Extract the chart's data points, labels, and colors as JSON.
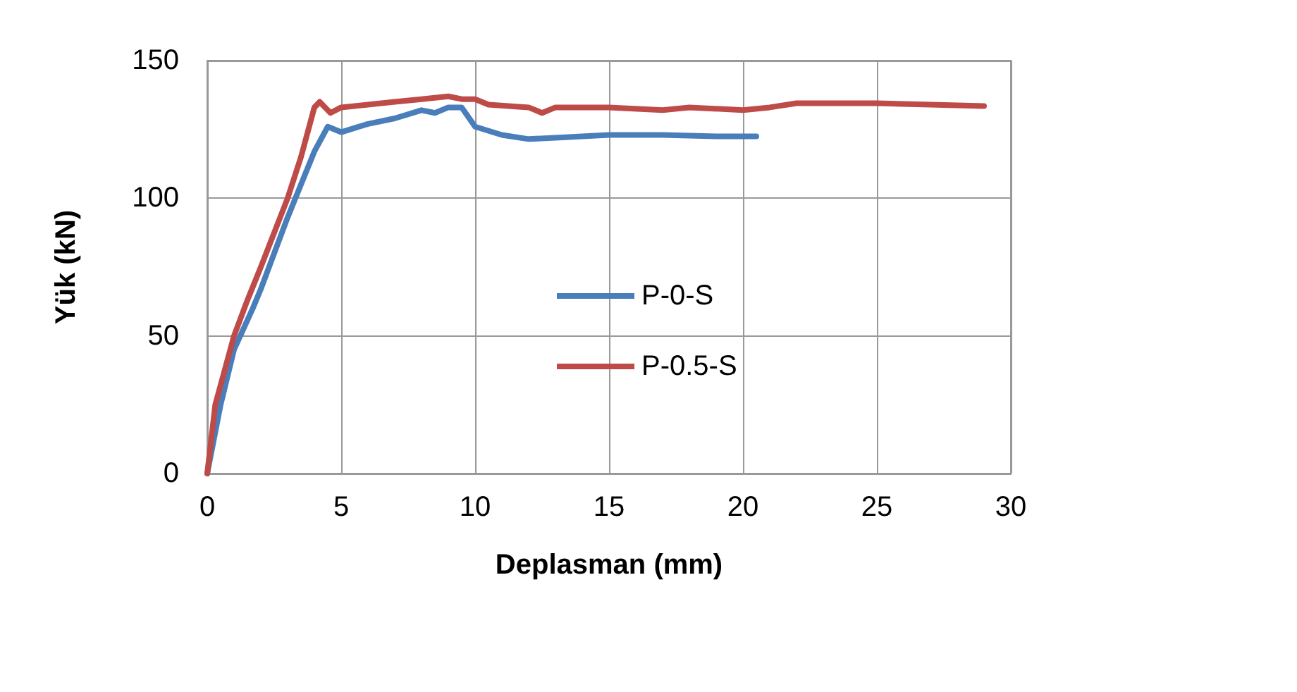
{
  "chart_data": {
    "type": "line",
    "xlabel": "Deplasman (mm)",
    "ylabel": "Yük (kN)",
    "xlim": [
      0,
      30
    ],
    "xticks": [
      0,
      5,
      10,
      15,
      20,
      25,
      30
    ],
    "ylim": [
      0,
      150
    ],
    "yticks": [
      0,
      50,
      100,
      150
    ],
    "grid": true,
    "legend": "center",
    "marker": "none",
    "line_style": "solid",
    "series": [
      {
        "name": "P-0-S",
        "color": "#4a7ebb",
        "x": [
          0,
          0.5,
          1,
          1.7,
          2,
          2.5,
          3,
          3.5,
          4,
          4.5,
          5,
          6,
          7,
          8,
          8.5,
          9,
          9.5,
          10,
          11,
          12,
          13,
          15,
          17,
          19,
          20.5
        ],
        "values": [
          0,
          25,
          45,
          60,
          67,
          80,
          93,
          105,
          117,
          126,
          124,
          127,
          129,
          132,
          131,
          133,
          133,
          126,
          123,
          121.5,
          122,
          123,
          123,
          122.5,
          122.5
        ]
      },
      {
        "name": "P-0.5-S",
        "color": "#be4b48",
        "x": [
          0,
          0.3,
          1,
          1.5,
          2,
          3,
          3.5,
          4,
          4.2,
          4.6,
          5,
          6,
          7,
          8,
          9,
          9.5,
          10,
          10.5,
          12,
          12.5,
          13,
          15,
          17,
          18,
          20,
          21,
          22,
          25,
          27,
          29
        ],
        "values": [
          0,
          25,
          50,
          63,
          75,
          100,
          115,
          133,
          135,
          131,
          133,
          134,
          135,
          136,
          137,
          136,
          136,
          134,
          133,
          131,
          133,
          133,
          132,
          133,
          132,
          133,
          134.5,
          134.5,
          134,
          133.5
        ]
      }
    ]
  }
}
